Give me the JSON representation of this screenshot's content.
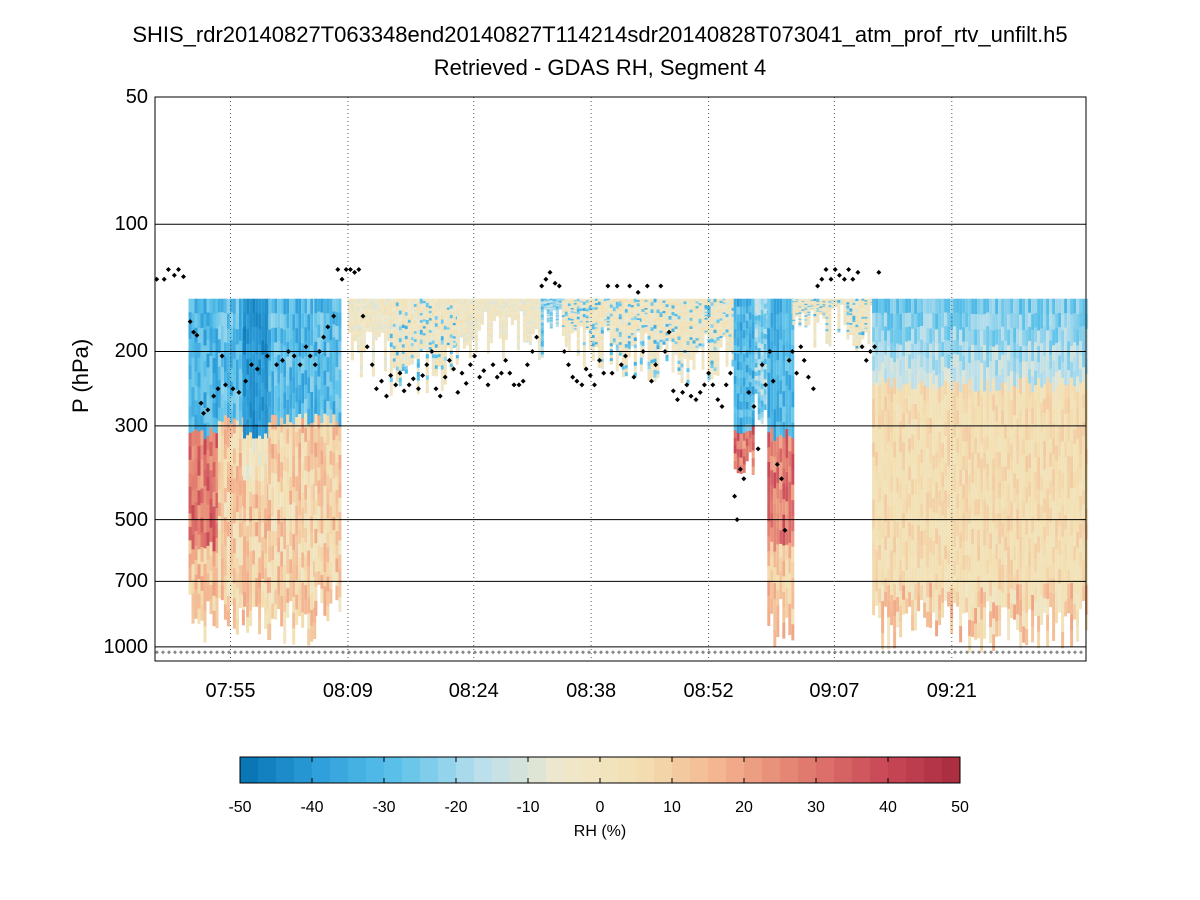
{
  "chart_data": {
    "type": "heatmap",
    "title": "SHIS_rdr20140827T063348end20140827T114214sdr20140828T073041_atm_prof_rtv_unfilt.h5",
    "subtitle": "Retrieved - GDAS RH, Segment 4",
    "ylabel": "P (hPa)",
    "yscale": "log-reversed",
    "ylim": [
      50,
      1080
    ],
    "yticks": [
      "50",
      "100",
      "200",
      "300",
      "500",
      "700",
      "1000"
    ],
    "ytick_values": [
      50,
      100,
      200,
      300,
      500,
      700,
      1000
    ],
    "xlabel": "",
    "xlim_minutes": [
      466,
      577
    ],
    "xticks": [
      "07:55",
      "08:09",
      "08:24",
      "08:38",
      "08:52",
      "09:07",
      "09:21"
    ],
    "xtick_minutes": [
      475,
      489,
      504,
      518,
      532,
      547,
      561
    ],
    "colorbar": {
      "label": "RH (%)",
      "range": [
        -50,
        50
      ],
      "ticks": [
        "-50",
        "-40",
        "-30",
        "-20",
        "-10",
        "0",
        "10",
        "20",
        "30",
        "40",
        "50"
      ],
      "colormap": [
        "#0571b0",
        "#2fa0dc",
        "#5ec3ea",
        "#b9dfec",
        "#efe8cc",
        "#f3e0b2",
        "#f3b48f",
        "#e37f70",
        "#cb4b59",
        "#a82a3e"
      ]
    },
    "segments": [
      {
        "start": 466.0,
        "end": 470.0,
        "top_hpa": 1000,
        "bottom_hpa": 1000,
        "profile": "none"
      },
      {
        "start": 470.0,
        "end": 473.5,
        "top_hpa": 150,
        "bottom_hpa": 1000,
        "profile": "dry_top_wet_mid"
      },
      {
        "start": 473.5,
        "end": 476.5,
        "top_hpa": 150,
        "bottom_hpa": 1000,
        "profile": "dry_top_moist_low"
      },
      {
        "start": 476.5,
        "end": 479.5,
        "top_hpa": 150,
        "bottom_hpa": 1000,
        "profile": "very_dry_top_moist_low"
      },
      {
        "start": 479.5,
        "end": 485.0,
        "top_hpa": 150,
        "bottom_hpa": 1000,
        "profile": "dry_top_moist_low"
      },
      {
        "start": 485.0,
        "end": 488.0,
        "top_hpa": 150,
        "bottom_hpa": 900,
        "profile": "dry_top_moist_low"
      },
      {
        "start": 489.0,
        "end": 494.0,
        "top_hpa": 150,
        "bottom_hpa": 230,
        "profile": "near_zero"
      },
      {
        "start": 494.0,
        "end": 502.0,
        "top_hpa": 150,
        "bottom_hpa": 260,
        "profile": "near_zero_streaky"
      },
      {
        "start": 502.0,
        "end": 512.0,
        "top_hpa": 150,
        "bottom_hpa": 210,
        "profile": "near_zero"
      },
      {
        "start": 512.0,
        "end": 514.5,
        "top_hpa": 150,
        "bottom_hpa": 210,
        "profile": "dry_streaks"
      },
      {
        "start": 514.5,
        "end": 524.0,
        "top_hpa": 150,
        "bottom_hpa": 230,
        "profile": "near_zero_streaky"
      },
      {
        "start": 524.0,
        "end": 535.0,
        "top_hpa": 150,
        "bottom_hpa": 240,
        "profile": "near_zero_streaky"
      },
      {
        "start": 535.0,
        "end": 537.5,
        "top_hpa": 150,
        "bottom_hpa": 450,
        "profile": "dry_top_wet_mid"
      },
      {
        "start": 537.5,
        "end": 539.0,
        "top_hpa": 150,
        "bottom_hpa": 300,
        "profile": "dry_streaks"
      },
      {
        "start": 539.0,
        "end": 542.0,
        "top_hpa": 150,
        "bottom_hpa": 1000,
        "profile": "dry_top_wet_mid"
      },
      {
        "start": 542.0,
        "end": 551.5,
        "top_hpa": 150,
        "bottom_hpa": 200,
        "profile": "near_zero_streaky"
      },
      {
        "start": 551.5,
        "end": 577.0,
        "top_hpa": 150,
        "bottom_hpa": 1030,
        "profile": "full_column"
      }
    ],
    "markers": {
      "description": "black diamond markers, approx. tropopause pressure (hPa) vs time (minutes after midnight)",
      "points": [
        [
          466.2,
          135
        ],
        [
          467.1,
          135
        ],
        [
          467.6,
          128
        ],
        [
          468.3,
          132
        ],
        [
          468.8,
          128
        ],
        [
          469.4,
          133
        ],
        [
          470.2,
          170
        ],
        [
          470.6,
          180
        ],
        [
          471.0,
          183
        ],
        [
          471.5,
          265
        ],
        [
          471.8,
          280
        ],
        [
          472.3,
          275
        ],
        [
          473.0,
          255
        ],
        [
          473.5,
          245
        ],
        [
          474.0,
          205
        ],
        [
          474.4,
          240
        ],
        [
          475.3,
          245
        ],
        [
          476.0,
          250
        ],
        [
          476.8,
          235
        ],
        [
          477.5,
          215
        ],
        [
          478.2,
          220
        ],
        [
          479.4,
          205
        ],
        [
          480.5,
          215
        ],
        [
          481.2,
          210
        ],
        [
          481.9,
          200
        ],
        [
          482.6,
          205
        ],
        [
          483.3,
          215
        ],
        [
          484.0,
          195
        ],
        [
          484.5,
          205
        ],
        [
          485.1,
          215
        ],
        [
          485.6,
          200
        ],
        [
          486.1,
          185
        ],
        [
          486.6,
          175
        ],
        [
          487.3,
          165
        ],
        [
          487.8,
          128
        ],
        [
          488.3,
          135
        ],
        [
          488.8,
          128
        ],
        [
          489.3,
          128
        ],
        [
          489.8,
          130
        ],
        [
          490.3,
          128
        ],
        [
          490.8,
          165
        ],
        [
          491.3,
          195
        ],
        [
          491.9,
          215
        ],
        [
          492.4,
          245
        ],
        [
          493.0,
          235
        ],
        [
          493.6,
          255
        ],
        [
          494.1,
          228
        ],
        [
          494.7,
          240
        ],
        [
          495.2,
          225
        ],
        [
          495.7,
          248
        ],
        [
          496.3,
          240
        ],
        [
          496.8,
          232
        ],
        [
          497.4,
          245
        ],
        [
          497.9,
          228
        ],
        [
          498.4,
          215
        ],
        [
          499.0,
          200
        ],
        [
          499.5,
          245
        ],
        [
          500.0,
          255
        ],
        [
          500.6,
          230
        ],
        [
          501.1,
          210
        ],
        [
          501.6,
          220
        ],
        [
          502.1,
          250
        ],
        [
          502.6,
          225
        ],
        [
          503.1,
          238
        ],
        [
          503.6,
          215
        ],
        [
          504.1,
          205
        ],
        [
          504.7,
          230
        ],
        [
          505.2,
          222
        ],
        [
          505.7,
          240
        ],
        [
          506.3,
          215
        ],
        [
          506.8,
          230
        ],
        [
          507.3,
          225
        ],
        [
          507.8,
          210
        ],
        [
          508.3,
          225
        ],
        [
          508.8,
          240
        ],
        [
          509.4,
          240
        ],
        [
          509.9,
          235
        ],
        [
          510.4,
          215
        ],
        [
          511.0,
          200
        ],
        [
          511.5,
          185
        ],
        [
          512.1,
          140
        ],
        [
          512.6,
          135
        ],
        [
          513.1,
          130
        ],
        [
          513.7,
          138
        ],
        [
          514.2,
          140
        ],
        [
          514.8,
          200
        ],
        [
          515.3,
          215
        ],
        [
          515.8,
          230
        ],
        [
          516.3,
          235
        ],
        [
          516.9,
          240
        ],
        [
          517.4,
          220
        ],
        [
          517.9,
          228
        ],
        [
          518.4,
          240
        ],
        [
          519.0,
          210
        ],
        [
          519.5,
          225
        ],
        [
          520.0,
          140
        ],
        [
          520.5,
          225
        ],
        [
          521.1,
          140
        ],
        [
          521.6,
          215
        ],
        [
          522.1,
          205
        ],
        [
          522.6,
          140
        ],
        [
          523.1,
          230
        ],
        [
          523.6,
          145
        ],
        [
          524.2,
          200
        ],
        [
          524.7,
          140
        ],
        [
          525.2,
          235
        ],
        [
          525.7,
          215
        ],
        [
          526.3,
          140
        ],
        [
          526.8,
          200
        ],
        [
          527.3,
          180
        ],
        [
          527.8,
          248
        ],
        [
          528.3,
          260
        ],
        [
          528.9,
          250
        ],
        [
          529.4,
          240
        ],
        [
          529.9,
          255
        ],
        [
          530.5,
          260
        ],
        [
          531.0,
          250
        ],
        [
          531.5,
          240
        ],
        [
          532.0,
          225
        ],
        [
          532.5,
          240
        ],
        [
          533.1,
          260
        ],
        [
          533.6,
          270
        ],
        [
          534.1,
          240
        ],
        [
          534.6,
          225
        ],
        [
          535.1,
          440
        ],
        [
          535.4,
          500
        ],
        [
          535.8,
          380
        ],
        [
          536.2,
          400
        ],
        [
          536.8,
          250
        ],
        [
          537.4,
          270
        ],
        [
          537.9,
          340
        ],
        [
          538.4,
          215
        ],
        [
          538.8,
          240
        ],
        [
          539.3,
          200
        ],
        [
          539.7,
          235
        ],
        [
          540.2,
          370
        ],
        [
          540.7,
          400
        ],
        [
          541.1,
          530
        ],
        [
          541.6,
          210
        ],
        [
          542.0,
          200
        ],
        [
          542.5,
          225
        ],
        [
          543.0,
          195
        ],
        [
          543.4,
          210
        ],
        [
          543.9,
          230
        ],
        [
          544.5,
          245
        ],
        [
          545.0,
          140
        ],
        [
          545.5,
          135
        ],
        [
          546.0,
          128
        ],
        [
          546.6,
          135
        ],
        [
          547.1,
          128
        ],
        [
          547.6,
          132
        ],
        [
          548.2,
          135
        ],
        [
          548.7,
          128
        ],
        [
          549.2,
          135
        ],
        [
          549.8,
          130
        ],
        [
          550.3,
          195
        ],
        [
          550.8,
          210
        ],
        [
          551.3,
          200
        ],
        [
          551.8,
          195
        ],
        [
          552.3,
          130
        ]
      ]
    }
  }
}
